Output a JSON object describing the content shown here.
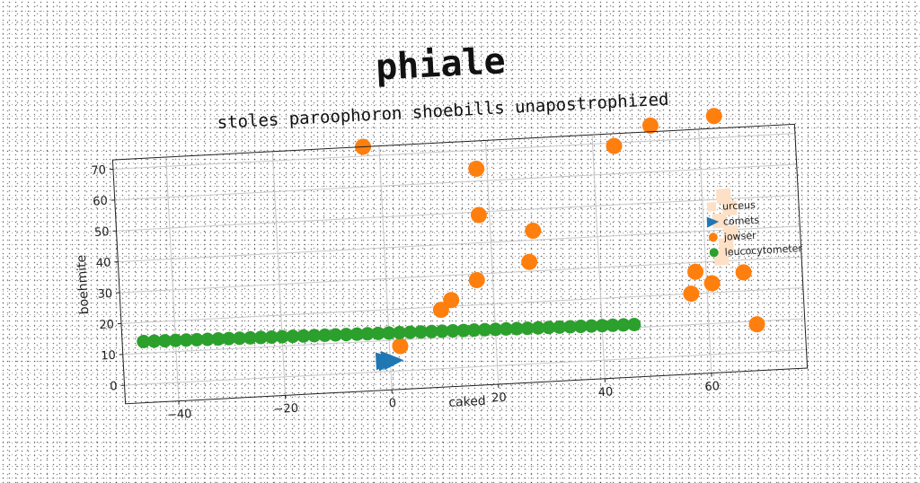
{
  "chart_data": {
    "type": "scatter",
    "title": "phiale",
    "subtitle": "stoles paroophoron shoebills unapostrophized",
    "xlabel": "caked",
    "ylabel": "boehmite",
    "xlim": [
      -50,
      78
    ],
    "ylim": [
      -6,
      73
    ],
    "xticks": [
      -40,
      -20,
      0,
      20,
      40,
      60
    ],
    "yticks": [
      0,
      10,
      20,
      30,
      40,
      50,
      60,
      70
    ],
    "grid": true,
    "legend_position": "right",
    "series": [
      {
        "name": "urceus",
        "marker": "square",
        "color": "#fde0c5",
        "points": [
          [
            64,
            51
          ],
          [
            65,
            47
          ],
          [
            63,
            43
          ],
          [
            65,
            39
          ],
          [
            64,
            35
          ],
          [
            63,
            31
          ]
        ]
      },
      {
        "name": "comets",
        "marker": "triangle-right",
        "color": "#1f77b4",
        "points": [
          [
            -1,
            3.5
          ],
          [
            -0.5,
            3.2
          ],
          [
            0,
            3.8
          ],
          [
            0.5,
            3.4
          ]
        ]
      },
      {
        "name": "jowser",
        "marker": "circle",
        "color": "#ff7f0e",
        "points": [
          [
            -3,
            73
          ],
          [
            18,
            64
          ],
          [
            18,
            49
          ],
          [
            28,
            43
          ],
          [
            27,
            33
          ],
          [
            17,
            28
          ],
          [
            12,
            22
          ],
          [
            10,
            19
          ],
          [
            2,
            8
          ],
          [
            44,
            69
          ],
          [
            51,
            75
          ],
          [
            63,
            77
          ],
          [
            57,
            20
          ],
          [
            58,
            27
          ],
          [
            61,
            23
          ],
          [
            67,
            26
          ],
          [
            69,
            9
          ]
        ]
      },
      {
        "name": "leucocytometer",
        "marker": "circle",
        "color": "#2ca02c",
        "x_start": -46,
        "x_end": 46,
        "y_start": 13.8,
        "y_end": 11.0,
        "count": 47
      }
    ]
  }
}
